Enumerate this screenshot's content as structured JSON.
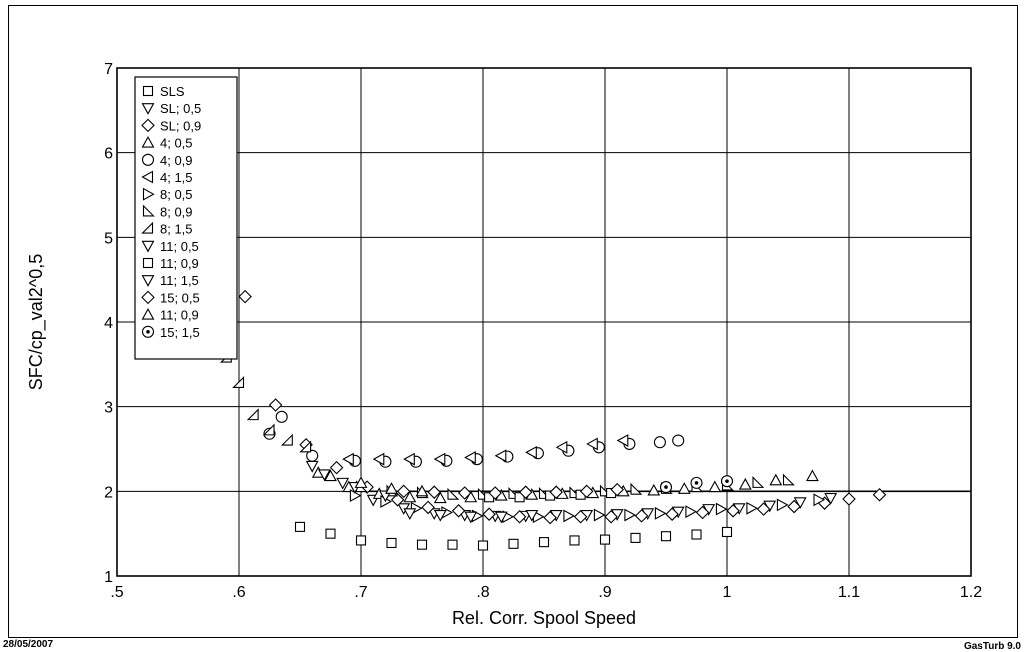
{
  "footer": {
    "date": "28/05/2007",
    "software": "GasTurb 9.0"
  },
  "chart_data": {
    "type": "scatter",
    "title": "",
    "xlabel": "Rel. Corr. Spool Speed",
    "ylabel": "SFC/cp_val2^0,5",
    "xlim": [
      0.5,
      1.2
    ],
    "ylim": [
      1,
      7
    ],
    "x_ticks": [
      0.5,
      0.6,
      0.7,
      0.8,
      0.9,
      1.0,
      1.1,
      1.2
    ],
    "x_tick_labels": [
      ".5",
      ".6",
      ".7",
      ".8",
      ".9",
      "1",
      "1.1",
      "1.2"
    ],
    "y_ticks": [
      1,
      2,
      3,
      4,
      5,
      6,
      7
    ],
    "y_tick_labels": [
      "1",
      "2",
      "3",
      "4",
      "5",
      "6",
      "7"
    ],
    "grid": true,
    "legend_position": "top-left",
    "reference_line": {
      "y": 2.0
    },
    "series": [
      {
        "name": "SLS",
        "marker": "square",
        "x": [
          0.65,
          0.675,
          0.7,
          0.725,
          0.75,
          0.775,
          0.8,
          0.825,
          0.85,
          0.875,
          0.9,
          0.925,
          0.95,
          0.975,
          1.0
        ],
        "y": [
          1.58,
          1.5,
          1.42,
          1.39,
          1.37,
          1.37,
          1.36,
          1.38,
          1.4,
          1.42,
          1.43,
          1.45,
          1.47,
          1.49,
          1.52
        ]
      },
      {
        "name": "SL; 0,5",
        "marker": "tri-down",
        "x": [
          0.66,
          0.685,
          0.71,
          0.735,
          0.76,
          0.785,
          0.81,
          0.835,
          0.86,
          0.885,
          0.91,
          0.935,
          0.96,
          0.985,
          1.01,
          1.035,
          1.06,
          1.085
        ],
        "y": [
          2.3,
          2.1,
          1.9,
          1.8,
          1.74,
          1.72,
          1.71,
          1.71,
          1.72,
          1.72,
          1.73,
          1.74,
          1.76,
          1.79,
          1.8,
          1.83,
          1.87,
          1.92
        ]
      },
      {
        "name": "SL; 0,9",
        "marker": "diamond",
        "x": [
          0.605,
          0.63,
          0.655,
          0.68,
          0.705,
          0.73,
          0.755,
          0.78,
          0.805,
          0.83,
          0.855,
          0.88,
          0.905,
          0.93,
          0.955,
          0.98,
          1.005,
          1.03,
          1.055,
          1.08,
          1.1,
          1.125
        ],
        "y": [
          4.3,
          3.02,
          2.55,
          2.28,
          2.05,
          1.9,
          1.81,
          1.77,
          1.73,
          1.7,
          1.69,
          1.7,
          1.7,
          1.71,
          1.73,
          1.75,
          1.77,
          1.79,
          1.82,
          1.86,
          1.91,
          1.96
        ]
      },
      {
        "name": "4; 0,5",
        "marker": "tri-up",
        "x": [
          0.665,
          0.69,
          0.715,
          0.74,
          0.765,
          0.79,
          0.815,
          0.84,
          0.865,
          0.89,
          0.915,
          0.94,
          0.965,
          0.99,
          1.015,
          1.04,
          1.07
        ],
        "y": [
          2.22,
          2.05,
          1.97,
          1.93,
          1.92,
          1.93,
          1.95,
          1.96,
          1.97,
          1.98,
          2.0,
          2.01,
          2.03,
          2.05,
          2.08,
          2.13,
          2.18
        ]
      },
      {
        "name": "4; 0,9",
        "marker": "circle",
        "x": [
          0.625,
          0.635,
          0.66,
          0.695,
          0.72,
          0.745,
          0.77,
          0.795,
          0.82,
          0.845,
          0.87,
          0.895,
          0.92,
          0.945,
          0.96
        ],
        "y": [
          2.68,
          2.88,
          2.42,
          2.36,
          2.35,
          2.35,
          2.36,
          2.38,
          2.41,
          2.45,
          2.48,
          2.52,
          2.56,
          2.58,
          2.6
        ]
      },
      {
        "name": "4; 1,5",
        "marker": "tri-left",
        "x": [
          0.69,
          0.715,
          0.74,
          0.765,
          0.79,
          0.815,
          0.84,
          0.865,
          0.89,
          0.915
        ],
        "y": [
          2.38,
          2.38,
          2.38,
          2.38,
          2.4,
          2.42,
          2.46,
          2.52,
          2.56,
          2.6
        ]
      },
      {
        "name": "8; 0,5",
        "marker": "tri-right",
        "x": [
          0.695,
          0.72,
          0.745,
          0.77,
          0.795,
          0.82,
          0.845,
          0.87,
          0.895,
          0.92,
          0.945,
          0.97,
          0.995,
          1.02,
          1.045,
          1.075
        ],
        "y": [
          1.95,
          1.88,
          1.8,
          1.75,
          1.71,
          1.7,
          1.7,
          1.71,
          1.72,
          1.72,
          1.74,
          1.76,
          1.79,
          1.8,
          1.84,
          1.9
        ]
      },
      {
        "name": "8; 0,9",
        "marker": "tri-br",
        "x": [
          0.7,
          0.725,
          0.75,
          0.775,
          0.8,
          0.825,
          0.85,
          0.875,
          0.9,
          0.925,
          0.95,
          0.975,
          1.0,
          1.025,
          1.05
        ],
        "y": [
          2.05,
          2.0,
          1.98,
          1.96,
          1.96,
          1.97,
          1.97,
          1.98,
          2.0,
          2.02,
          2.03,
          2.05,
          2.07,
          2.1,
          2.13
        ]
      },
      {
        "name": "8; 1,5",
        "marker": "tri-tr",
        "x": [
          0.59,
          0.6,
          0.612,
          0.625,
          0.64,
          0.655
        ],
        "y": [
          3.58,
          3.28,
          2.9,
          2.72,
          2.6,
          2.52
        ]
      },
      {
        "name": "11; 0,5",
        "marker": "tri-down-filled",
        "x": [
          0.67,
          0.695,
          0.72
        ],
        "y": [
          2.2,
          2.05,
          1.95
        ]
      },
      {
        "name": "11; 0,9",
        "marker": "square",
        "x": [
          0.805,
          0.83,
          0.855,
          0.88,
          0.905
        ],
        "y": [
          1.93,
          1.93,
          1.95,
          1.96,
          1.98
        ]
      },
      {
        "name": "11; 1,5",
        "marker": "tri-down",
        "x": [
          0.74,
          0.765,
          0.79,
          0.815,
          0.84
        ],
        "y": [
          1.74,
          1.72,
          1.7,
          1.7,
          1.72
        ]
      },
      {
        "name": "15; 0,5",
        "marker": "diamond",
        "x": [
          0.735,
          0.76,
          0.785,
          0.81,
          0.835,
          0.86,
          0.885,
          0.91
        ],
        "y": [
          2.0,
          1.99,
          1.98,
          1.98,
          1.99,
          1.99,
          2.0,
          2.02
        ]
      },
      {
        "name": "11; 0,9",
        "marker": "tri-up",
        "x": [
          0.675,
          0.7,
          0.725,
          0.75
        ],
        "y": [
          2.18,
          2.1,
          2.03,
          2.0
        ]
      },
      {
        "name": "15; 1,5",
        "marker": "circle-dot",
        "x": [
          0.95,
          0.975,
          1.0
        ],
        "y": [
          2.05,
          2.1,
          2.12
        ]
      }
    ]
  }
}
